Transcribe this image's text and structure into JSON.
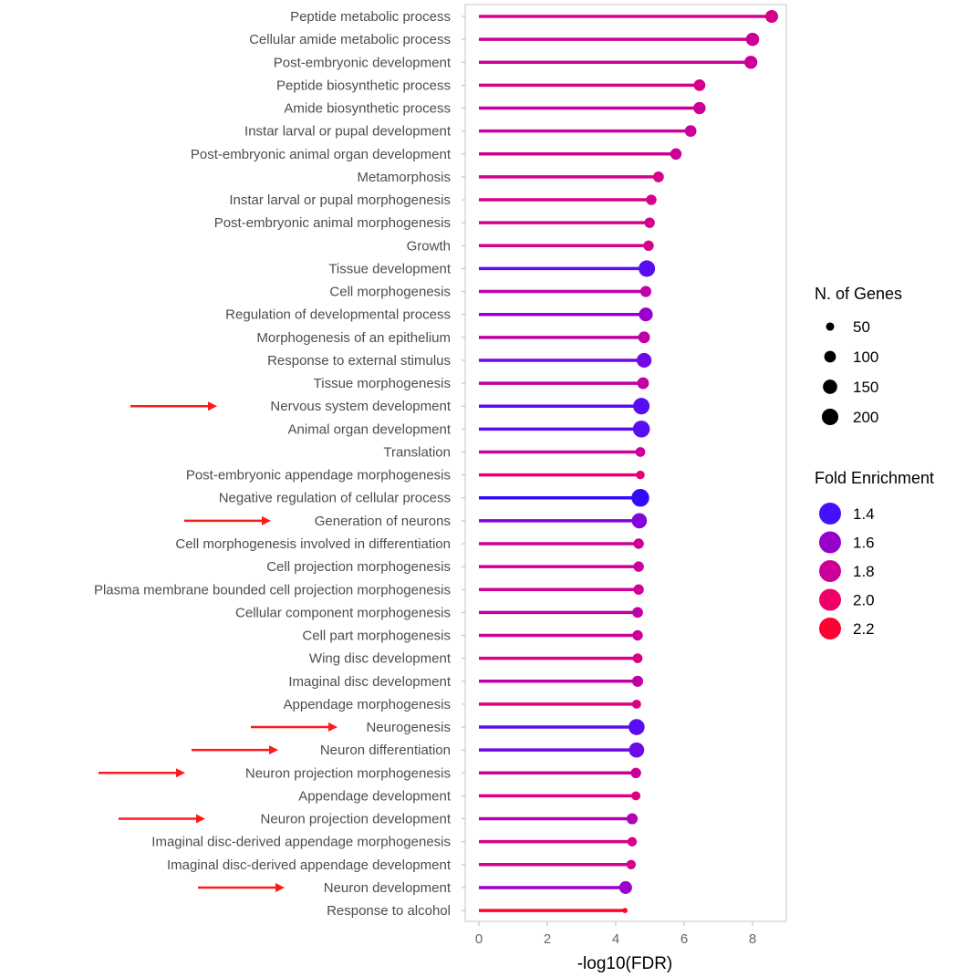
{
  "chart_data": {
    "type": "scatter",
    "subtype": "lollipop",
    "xlabel": "-log10(FDR)",
    "ylabel": "",
    "xlim": [
      -0.4,
      8.9
    ],
    "xticks": [
      0,
      2,
      4,
      6,
      8
    ],
    "grid": false,
    "legend_position": "right",
    "size_legend": {
      "title": "N. of Genes",
      "values": [
        50,
        100,
        150,
        200
      ]
    },
    "color_legend": {
      "title": "Fold Enrichment",
      "values": [
        "1.4",
        "1.6",
        "1.8",
        "2.0",
        "2.2"
      ],
      "low_color": "#2200ff",
      "high_color": "#ff0022"
    },
    "annotation_color": "#ff1a1a",
    "categories": [
      "Peptide metabolic process",
      "Cellular amide metabolic process",
      "Post-embryonic development",
      "Peptide biosynthetic process",
      "Amide biosynthetic process",
      "Instar larval or pupal development",
      "Post-embryonic animal organ development",
      "Metamorphosis",
      "Instar larval or pupal morphogenesis",
      "Post-embryonic animal morphogenesis",
      "Growth",
      "Tissue development",
      "Cell morphogenesis",
      "Regulation of developmental process",
      "Morphogenesis of an epithelium",
      "Response to external stimulus",
      "Tissue morphogenesis",
      "Nervous system development",
      "Animal organ development",
      "Translation",
      "Post-embryonic appendage morphogenesis",
      "Negative regulation of cellular process",
      "Generation of neurons",
      "Cell morphogenesis involved in differentiation",
      "Cell projection morphogenesis",
      "Plasma membrane bounded cell projection morphogenesis",
      "Cellular component morphogenesis",
      "Cell part morphogenesis",
      "Wing disc development",
      "Imaginal disc development",
      "Appendage morphogenesis",
      "Neurogenesis",
      "Neuron differentiation",
      "Neuron projection morphogenesis",
      "Appendage development",
      "Neuron projection development",
      "Imaginal disc-derived appendage morphogenesis",
      "Imaginal disc-derived appendage development",
      "Neuron development",
      "Response to alcohol"
    ],
    "neg_log10_fdr": [
      8.56,
      8.0,
      7.95,
      6.45,
      6.45,
      6.19,
      5.76,
      5.25,
      5.04,
      4.99,
      4.96,
      4.91,
      4.88,
      4.88,
      4.83,
      4.83,
      4.8,
      4.75,
      4.75,
      4.72,
      4.72,
      4.72,
      4.69,
      4.67,
      4.67,
      4.67,
      4.64,
      4.64,
      4.64,
      4.64,
      4.61,
      4.61,
      4.61,
      4.59,
      4.59,
      4.48,
      4.48,
      4.45,
      4.29,
      4.27
    ],
    "fold_enrichment": [
      1.85,
      1.8,
      1.8,
      1.85,
      1.8,
      1.8,
      1.8,
      1.85,
      1.85,
      1.85,
      1.85,
      1.45,
      1.75,
      1.6,
      1.75,
      1.5,
      1.75,
      1.45,
      1.45,
      1.8,
      1.95,
      1.35,
      1.55,
      1.8,
      1.8,
      1.8,
      1.75,
      1.8,
      1.9,
      1.75,
      1.9,
      1.45,
      1.5,
      1.8,
      1.9,
      1.7,
      1.85,
      1.85,
      1.6,
      2.25
    ],
    "n_genes": [
      120,
      130,
      125,
      100,
      110,
      100,
      95,
      85,
      80,
      80,
      80,
      200,
      90,
      140,
      100,
      160,
      100,
      200,
      210,
      70,
      55,
      230,
      170,
      80,
      80,
      80,
      85,
      80,
      70,
      90,
      60,
      190,
      170,
      80,
      60,
      90,
      65,
      65,
      120,
      20
    ],
    "highlighted": [
      "Nervous system development",
      "Generation of neurons",
      "Neurogenesis",
      "Neuron differentiation",
      "Neuron projection morphogenesis",
      "Neuron projection development",
      "Neuron development"
    ]
  }
}
